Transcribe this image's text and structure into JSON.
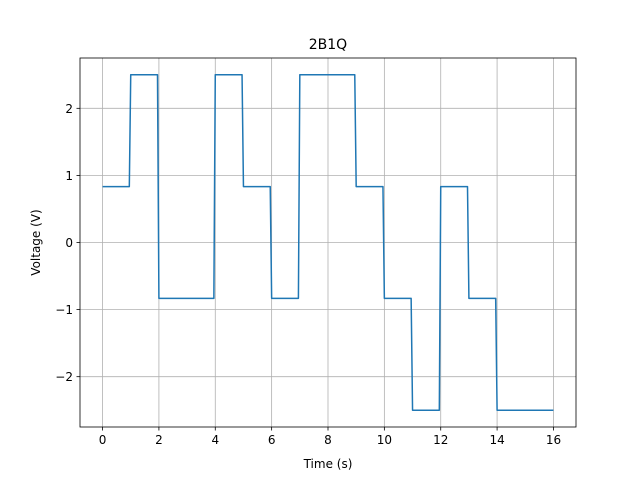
{
  "chart_data": {
    "type": "line",
    "title": "2B1Q",
    "xlabel": "Time (s)",
    "ylabel": "Voltage (V)",
    "xlim": [
      -0.8,
      16.8
    ],
    "ylim": [
      -2.75,
      2.75
    ],
    "xticks": [
      0,
      2,
      4,
      6,
      8,
      10,
      12,
      14,
      16
    ],
    "xtick_labels": [
      "0",
      "2",
      "4",
      "6",
      "8",
      "10",
      "12",
      "14",
      "16"
    ],
    "yticks": [
      -2,
      -1,
      0,
      1,
      2
    ],
    "ytick_labels": [
      "−2",
      "−1",
      "0",
      "1",
      "2"
    ],
    "grid": true,
    "series": [
      {
        "color": "#1f77b4",
        "x": [
          0,
          0.95,
          1.0,
          1.95,
          2.0,
          3.95,
          4.0,
          4.95,
          5.0,
          5.95,
          6.0,
          6.95,
          7.0,
          8.95,
          9.0,
          9.95,
          10.0,
          10.95,
          11.0,
          11.95,
          12.0,
          12.95,
          13.0,
          13.95,
          14.0,
          16.0
        ],
        "y": [
          0.833,
          0.833,
          2.5,
          2.5,
          -0.833,
          -0.833,
          2.5,
          2.5,
          0.833,
          0.833,
          -0.833,
          -0.833,
          2.5,
          2.5,
          0.833,
          0.833,
          -0.833,
          -0.833,
          -2.5,
          -2.5,
          0.833,
          0.833,
          -0.833,
          -0.833,
          -2.5,
          -2.5
        ]
      }
    ]
  }
}
